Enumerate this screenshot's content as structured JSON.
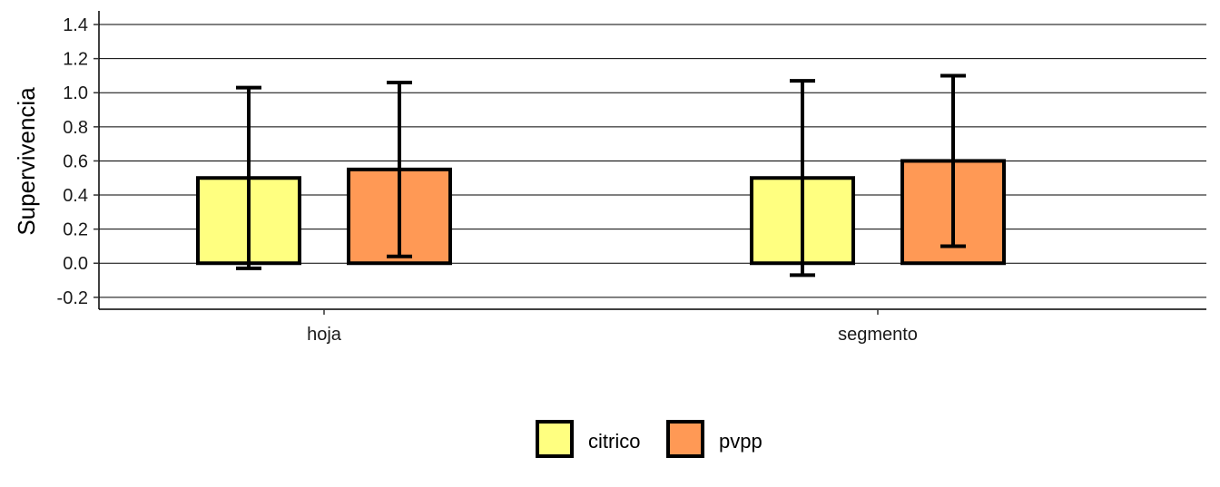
{
  "chart_data": {
    "type": "bar",
    "categories": [
      "hoja",
      "segmento"
    ],
    "series": [
      {
        "name": "citrico",
        "color": "#FFFF80",
        "values": [
          0.5,
          0.5
        ],
        "error_low": [
          -0.03,
          -0.07
        ],
        "error_high": [
          1.03,
          1.07
        ]
      },
      {
        "name": "pvpp",
        "color": "#FF9955",
        "values": [
          0.55,
          0.6
        ],
        "error_low": [
          0.04,
          0.1
        ],
        "error_high": [
          1.06,
          1.1
        ]
      }
    ],
    "title": "",
    "xlabel": "",
    "ylabel": "Supervivencia",
    "ylim": [
      -0.27,
      1.48
    ],
    "yticks": [
      -0.2,
      0.0,
      0.2,
      0.4,
      0.6,
      0.8,
      1.0,
      1.2,
      1.4
    ],
    "ytick_labels": [
      "-0.2",
      "0.0",
      "0.2",
      "0.4",
      "0.6",
      "0.8",
      "1.0",
      "1.2",
      "1.4"
    ],
    "grid": "horizontal",
    "legend_position": "bottom"
  }
}
